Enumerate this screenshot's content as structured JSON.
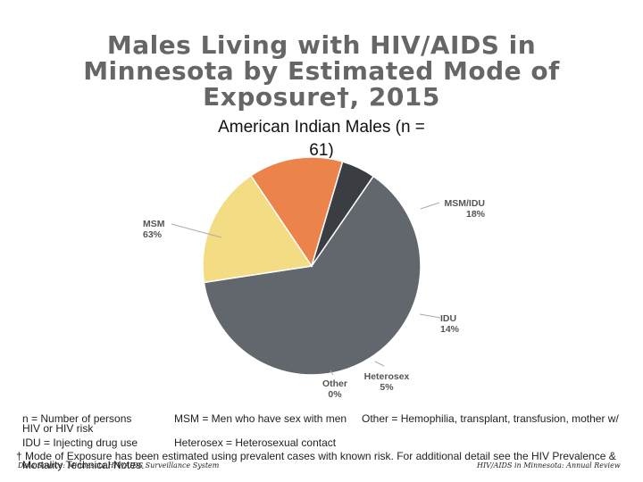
{
  "header": {
    "title_lines": [
      "Males Living with HIV/AIDS in",
      "Minnesota by Estimated Mode of",
      "Exposure†, 2015"
    ],
    "subtitle_lines": [
      "American Indian Males (n =",
      "61)"
    ]
  },
  "chart_data": {
    "type": "pie",
    "title": "Males Living with HIV/AIDS in Minnesota by Estimated Mode of Exposure†, 2015",
    "subtitle": "American Indian Males (n = 61)",
    "slices": [
      {
        "label": "MSM",
        "value": 63,
        "value_label": "63%",
        "color": "#62676e"
      },
      {
        "label": "MSM/IDU",
        "value": 18,
        "value_label": "18%",
        "color": "#f3dc84"
      },
      {
        "label": "IDU",
        "value": 14,
        "value_label": "14%",
        "color": "#eb834a"
      },
      {
        "label": "Heterosex",
        "value": 5,
        "value_label": "5%",
        "color": "#3a3d42"
      },
      {
        "label": "Other",
        "value": 0,
        "value_label": "0%",
        "color": "#c8c8c8"
      }
    ],
    "legend": "none"
  },
  "notes": {
    "n_def": "n = Number of persons",
    "msm_def": "MSM = Men who have sex with men",
    "other_def": "Other = Hemophilia, transplant, transfusion, mother w/",
    "other_def_2": "HIV or HIV risk",
    "idu_def": "IDU = Injecting drug use",
    "hetero_def": "Heterosex = Heterosexual contact",
    "mode_note": "† Mode of Exposure has been estimated using prevalent cases with known risk. For additional detail see the HIV Prevalence &",
    "mode_note_2": "Mortality Technical Notes.",
    "data_source": "Data Source: Minnesota HIV/AIDS Surveillance System",
    "report_name": "HIV/AIDS in Minnesota: Annual Review"
  }
}
